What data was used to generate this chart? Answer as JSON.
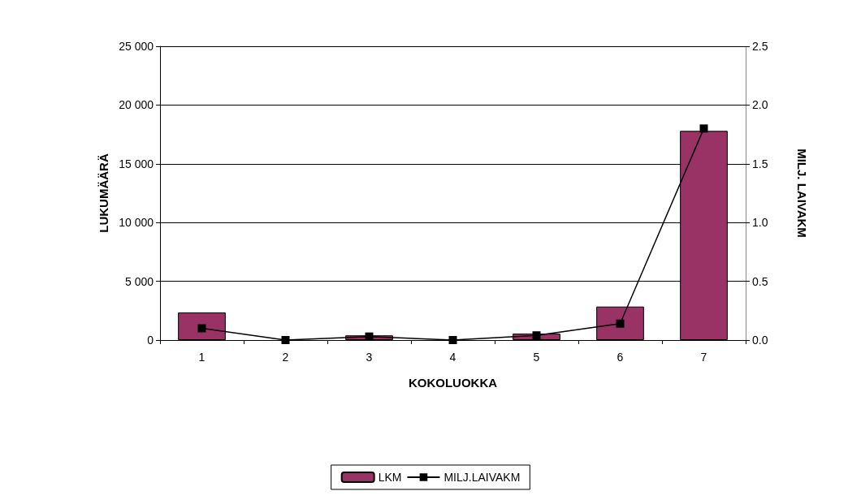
{
  "chart_data": {
    "type": "bar",
    "xlabel": "KOKOLUOKKA",
    "ylabel": "LUKUMÄÄRÄ",
    "y2label": "MILJ. LAIVAKM",
    "categories": [
      "1",
      "2",
      "3",
      "4",
      "5",
      "6",
      "7"
    ],
    "series": [
      {
        "name": "LKM",
        "color": "#993366",
        "values": [
          2350,
          0,
          400,
          0,
          550,
          2850,
          17800
        ]
      },
      {
        "name": "MILJ.LAIVAKM",
        "type": "line",
        "axis": "y2",
        "color": "#000000",
        "marker": "square",
        "values": [
          0.1,
          0,
          0.03,
          0,
          0.04,
          0.14,
          1.8
        ]
      }
    ],
    "ylim": [
      0,
      25000
    ],
    "yticks": [
      {
        "value": 0,
        "label": "0"
      },
      {
        "value": 5000,
        "label": "5 000"
      },
      {
        "value": 10000,
        "label": "10 000"
      },
      {
        "value": 15000,
        "label": "15 000"
      },
      {
        "value": 20000,
        "label": "20 000"
      },
      {
        "value": 25000,
        "label": "25 000"
      }
    ],
    "y2lim": [
      0,
      2.5
    ],
    "y2ticks": [
      {
        "value": 0,
        "label": "0.0"
      },
      {
        "value": 0.5,
        "label": "0.5"
      },
      {
        "value": 1,
        "label": "1.0"
      },
      {
        "value": 1.5,
        "label": "1.5"
      },
      {
        "value": 2,
        "label": "2.0"
      },
      {
        "value": 2.5,
        "label": "2.5"
      }
    ],
    "grid": "y",
    "legend": "bottom"
  }
}
